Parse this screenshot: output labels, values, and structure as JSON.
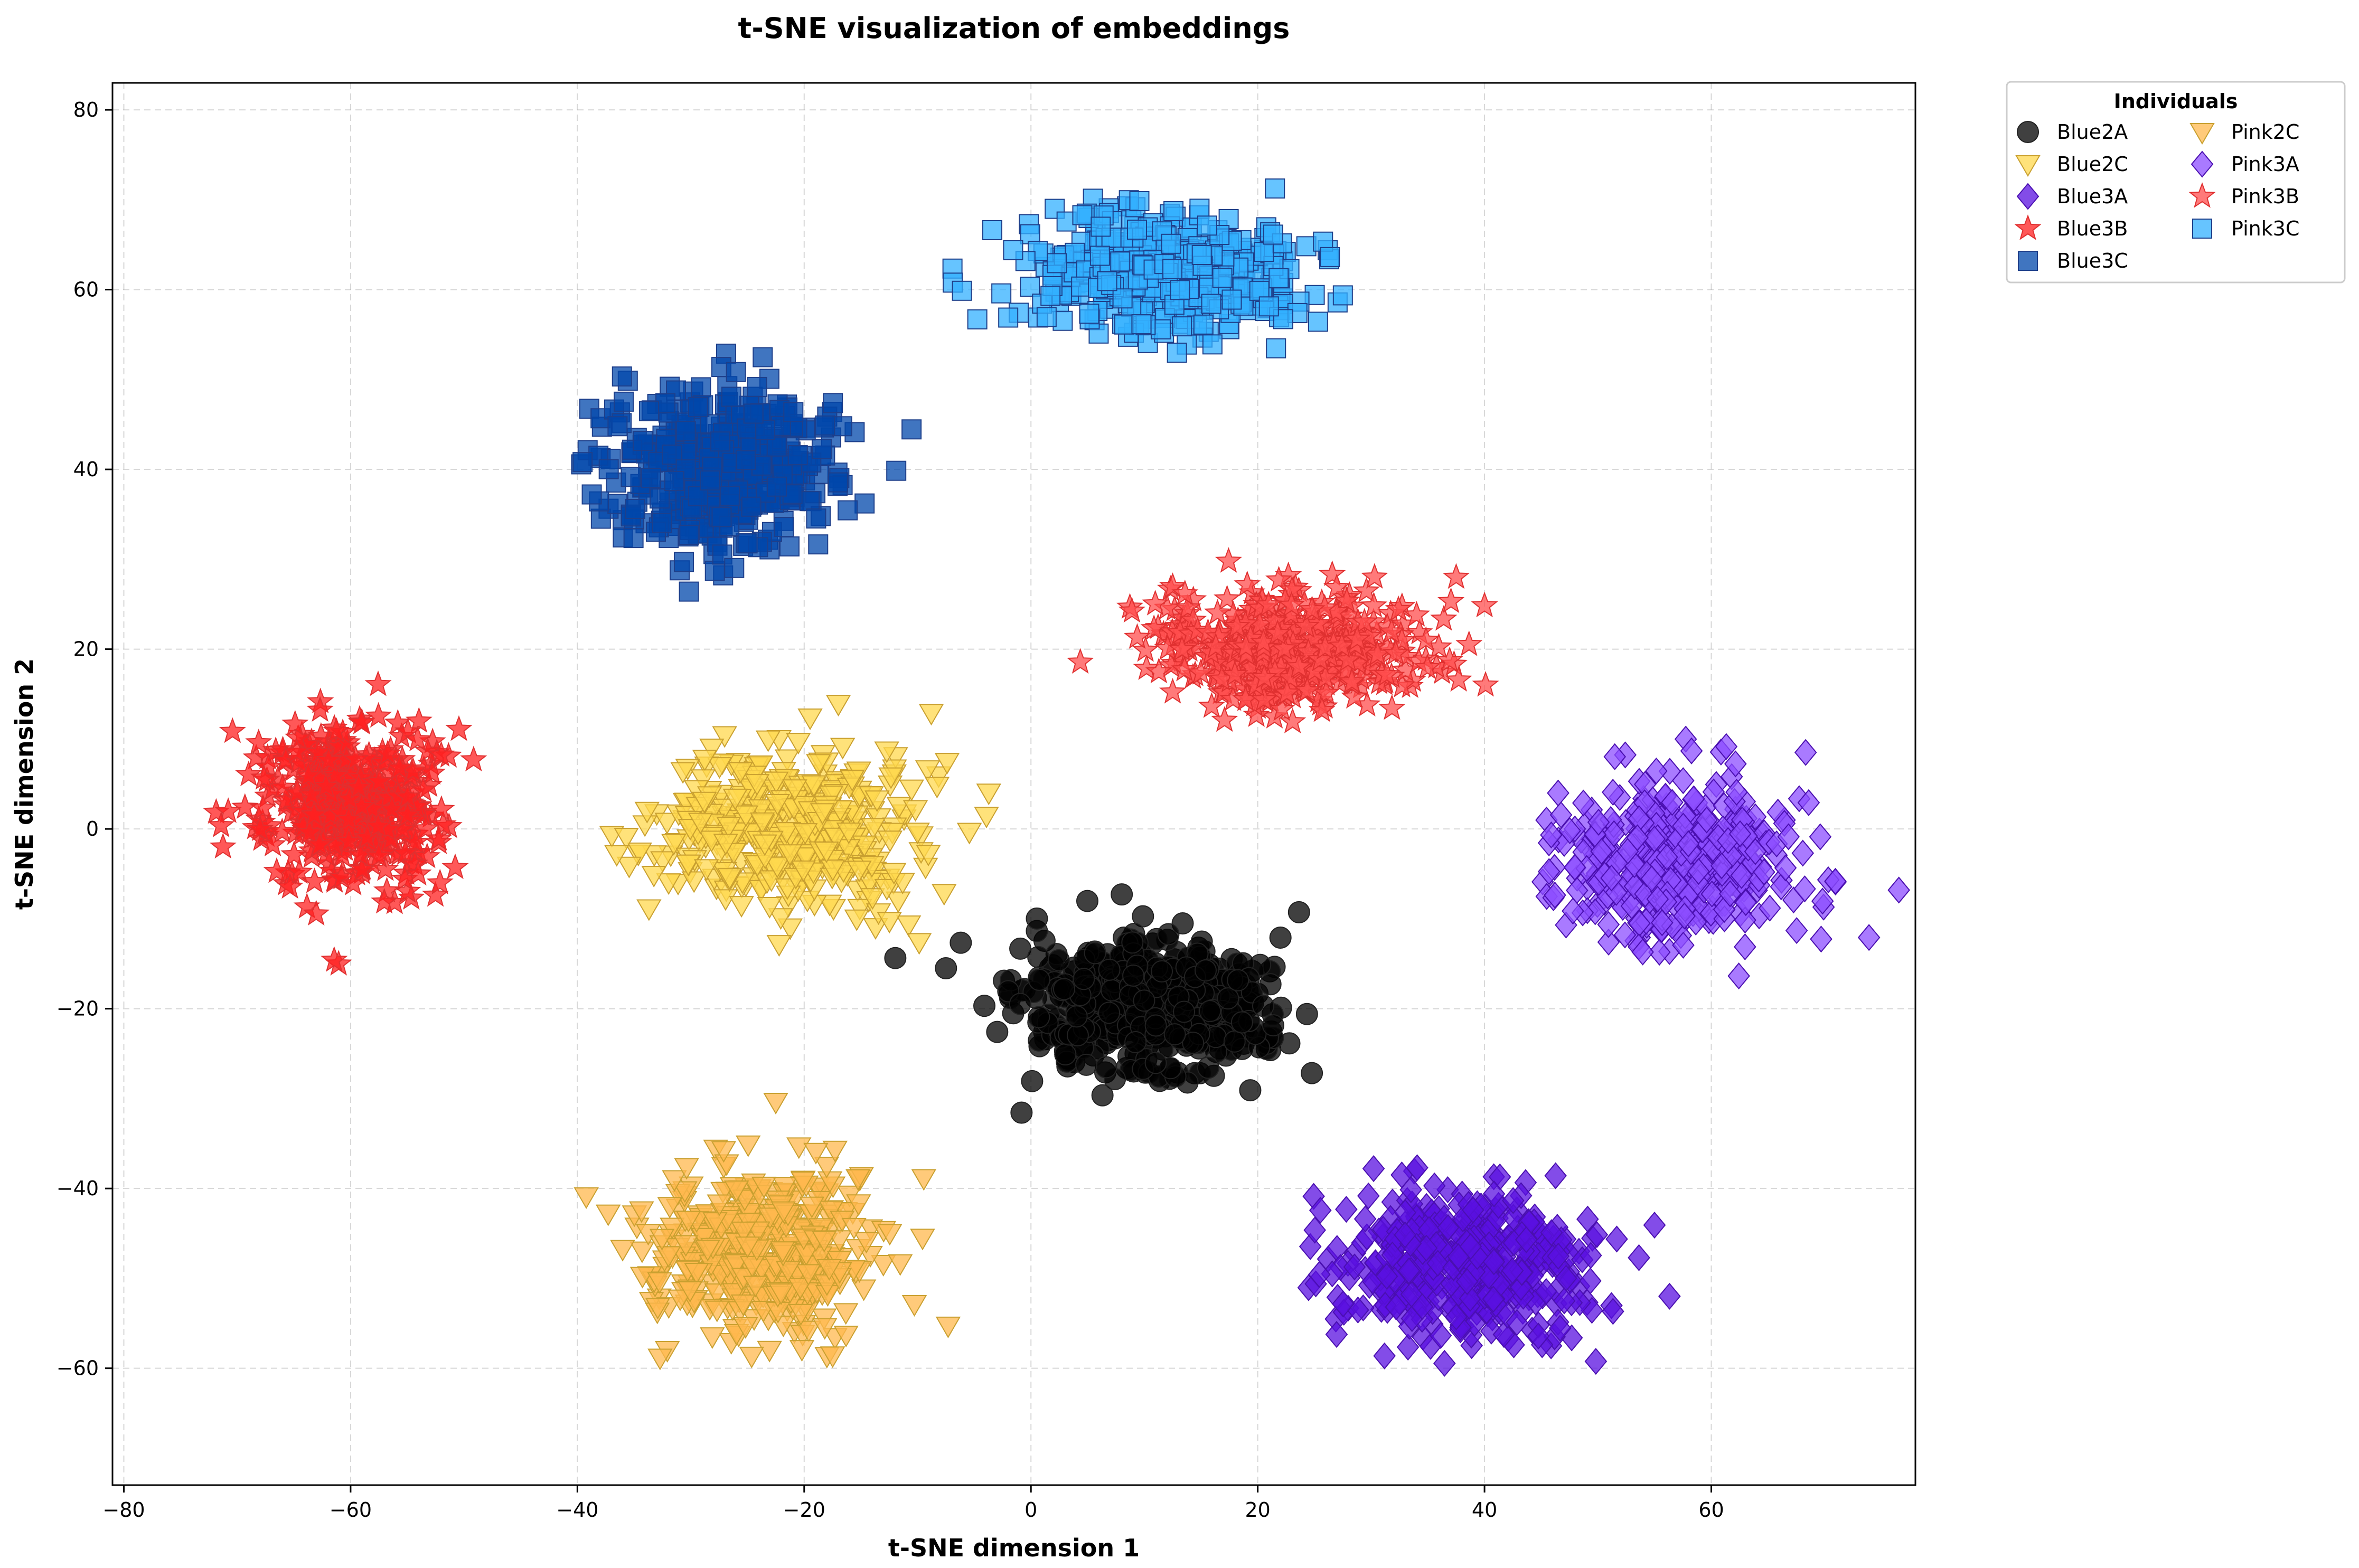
{
  "chart_data": {
    "type": "scatter",
    "title": "t-SNE visualization of embeddings",
    "xlabel": "t-SNE dimension 1",
    "ylabel": "t-SNE dimension 2",
    "xlim": [
      -81,
      78
    ],
    "ylim": [
      -73,
      83
    ],
    "xticks": [
      -80,
      -60,
      -40,
      -20,
      0,
      20,
      40,
      60
    ],
    "yticks": [
      -60,
      -40,
      -20,
      0,
      20,
      40,
      60,
      80
    ],
    "xtick_labels": [
      "−80",
      "−60",
      "−40",
      "−20",
      "0",
      "20",
      "40",
      "60"
    ],
    "ytick_labels": [
      "−60",
      "−40",
      "−20",
      "0",
      "20",
      "40",
      "60",
      "80"
    ],
    "grid": true,
    "legend": {
      "title": "Individuals",
      "placement": "outside upper right",
      "columns": 2
    },
    "series": [
      {
        "name": "Blue2A",
        "marker": "circle",
        "color": "#000000",
        "center": [
          10,
          -20
        ],
        "spread": [
          10,
          7
        ],
        "n": 520
      },
      {
        "name": "Blue2C",
        "marker": "triangle-down",
        "color": "#ffd84d",
        "center": [
          -21,
          0
        ],
        "spread": [
          10,
          8
        ],
        "n": 460
      },
      {
        "name": "Blue3A",
        "marker": "diamond",
        "color": "#5a10e0",
        "center": [
          38,
          -48
        ],
        "spread": [
          10,
          8
        ],
        "n": 460
      },
      {
        "name": "Blue3B",
        "marker": "star",
        "color": "#ff2020",
        "center": [
          -60,
          3
        ],
        "spread": [
          7,
          8
        ],
        "n": 460
      },
      {
        "name": "Blue3C",
        "marker": "square",
        "color": "#0047ab",
        "center": [
          -27,
          40
        ],
        "spread": [
          9,
          8
        ],
        "n": 460
      },
      {
        "name": "Pink2C",
        "marker": "triangle-down",
        "color": "#ffb84d",
        "center": [
          -24,
          -47
        ],
        "spread": [
          9,
          8
        ],
        "n": 460
      },
      {
        "name": "Pink3A",
        "marker": "diamond",
        "color": "#8c4dff",
        "center": [
          57,
          -4
        ],
        "spread": [
          9,
          8
        ],
        "n": 460
      },
      {
        "name": "Pink3B",
        "marker": "star",
        "color": "#ff4d4d",
        "center": [
          23,
          20
        ],
        "spread": [
          11,
          6
        ],
        "n": 460
      },
      {
        "name": "Pink3C",
        "marker": "square",
        "color": "#33b0ff",
        "center": [
          12,
          62
        ],
        "spread": [
          11,
          6
        ],
        "n": 460
      }
    ]
  }
}
